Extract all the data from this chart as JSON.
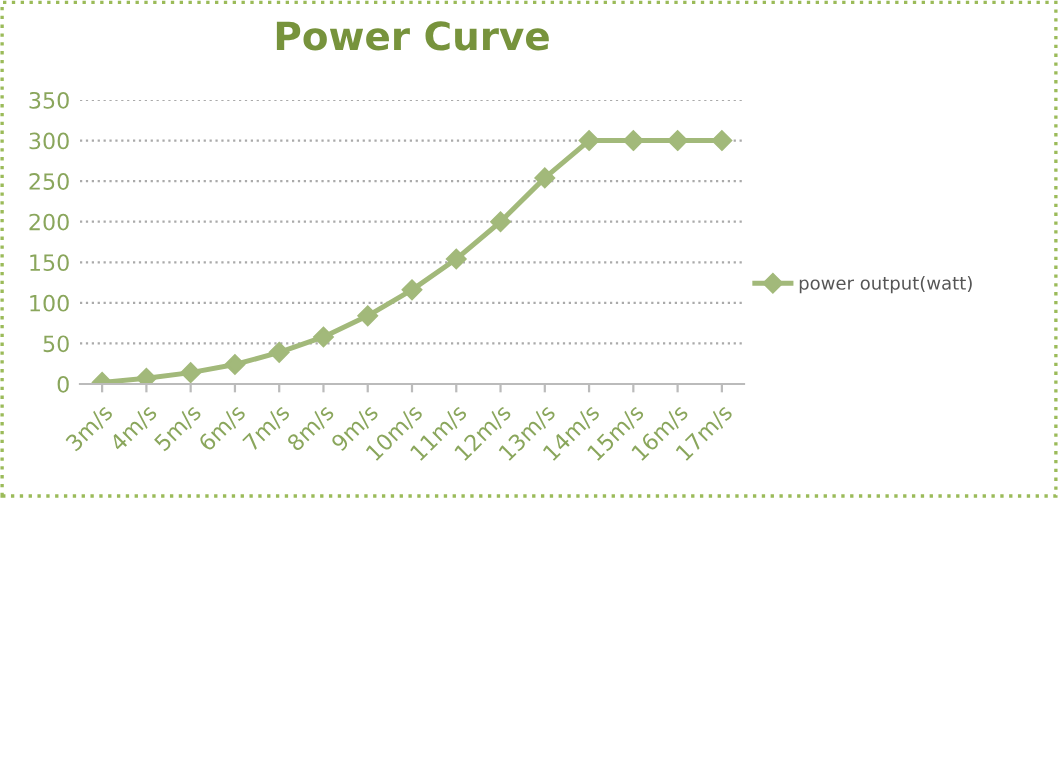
{
  "chart_data": {
    "type": "line",
    "title": "Power Curve",
    "categories": [
      "3m/s",
      "4m/s",
      "5m/s",
      "6m/s",
      "7m/s",
      "8m/s",
      "9m/s",
      "10m/s",
      "11m/s",
      "12m/s",
      "13m/s",
      "14m/s",
      "15m/s",
      "16m/s",
      "17m/s"
    ],
    "series": [
      {
        "name": "power output(watt)",
        "color": "#a2b97a",
        "values": [
          2,
          7,
          14,
          24,
          39,
          58,
          84,
          116,
          154,
          200,
          254,
          300,
          300,
          300,
          300
        ]
      }
    ],
    "ylim": [
      0,
      350
    ],
    "yticks": [
      0,
      50,
      100,
      150,
      200,
      250,
      300,
      350
    ],
    "grid": "y",
    "legend": "right",
    "marker": "diamond",
    "line_style": "solid"
  }
}
